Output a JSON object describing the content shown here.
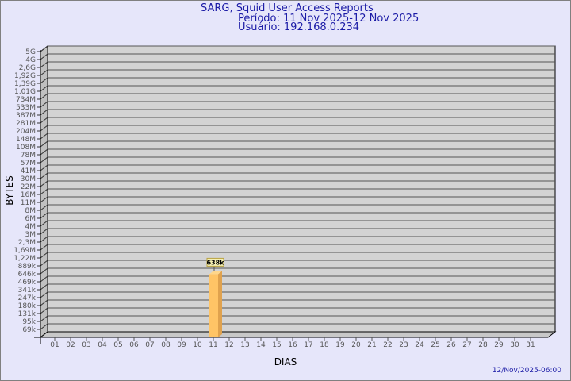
{
  "chart_data": {
    "type": "bar",
    "title": "SARG, Squid User Access Reports",
    "subtitle": "Período: 11 Nov 2025-12 Nov 2025",
    "subtitle2": "Usuário: 192.168.0.234",
    "xlabel": "DIAS",
    "ylabel": "BYTES",
    "y_scale": "log",
    "grid": true,
    "y_ticks": [
      "5G",
      "4G",
      "2,6G",
      "1,92G",
      "1,39G",
      "1,01G",
      "734M",
      "533M",
      "387M",
      "281M",
      "204M",
      "148M",
      "108M",
      "78M",
      "57M",
      "41M",
      "30M",
      "22M",
      "16M",
      "11M",
      "8M",
      "6M",
      "4M",
      "3M",
      "2,3M",
      "1,69M",
      "1,22M",
      "889k",
      "646k",
      "469k",
      "341k",
      "247k",
      "180k",
      "131k",
      "95k",
      "69k"
    ],
    "categories": [
      "01",
      "02",
      "03",
      "04",
      "05",
      "06",
      "07",
      "08",
      "09",
      "10",
      "11",
      "12",
      "13",
      "14",
      "15",
      "16",
      "17",
      "18",
      "19",
      "20",
      "21",
      "22",
      "23",
      "24",
      "25",
      "26",
      "27",
      "28",
      "29",
      "30",
      "31"
    ],
    "bars": [
      {
        "category": "11",
        "value": 638000,
        "label": "638k"
      }
    ],
    "colors": {
      "bar": "#ffc466",
      "bar_side": "#e0a24e",
      "plot": "#d3d3d3",
      "text": "#1a1aa6"
    }
  },
  "footer": {
    "timestamp": "12/Nov/2025-06:00"
  }
}
